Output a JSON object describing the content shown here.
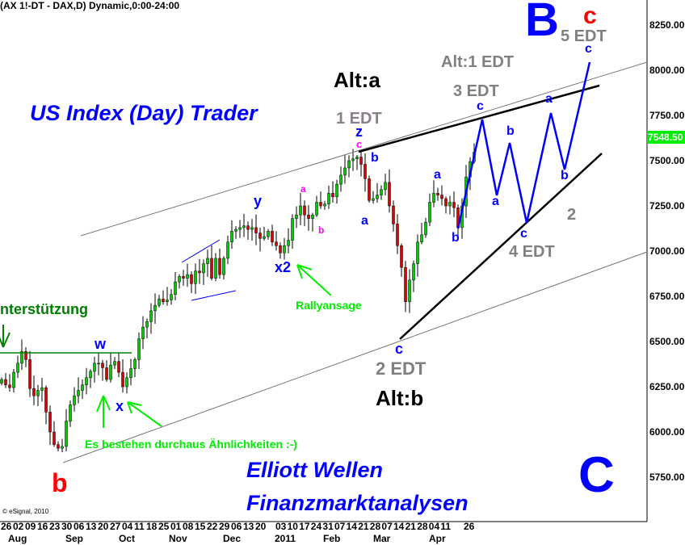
{
  "header": {
    "title": "(AX 1!-DT - DAX,D) Dynamic,0:00-24:00",
    "copyright": "© eSignal, 2010"
  },
  "chart_data": {
    "type": "candlestick",
    "symbol": "DAX",
    "interval": "D",
    "ylim": [
      5600,
      8400
    ],
    "y_ticks": [
      "8250.00",
      "8000.00",
      "7750.00",
      "7500.00",
      "7250.00",
      "7000.00",
      "6750.00",
      "6500.00",
      "6250.00",
      "6000.00",
      "5750.00"
    ],
    "last_price": "7548.50",
    "x_day_ticks": [
      "26",
      "02",
      "09",
      "16",
      "23",
      "30",
      "06",
      "13",
      "20",
      "27",
      "04",
      "11",
      "18",
      "25",
      "01",
      "08",
      "15",
      "22",
      "29",
      "06",
      "13",
      "20",
      "03",
      "10",
      "17",
      "24",
      "31",
      "07",
      "14",
      "21",
      "28",
      "07",
      "14",
      "21",
      "28",
      "04",
      "11",
      "26"
    ],
    "x_month_ticks": [
      "Aug",
      "Sep",
      "Oct",
      "Nov",
      "Dec",
      "2011",
      "Feb",
      "Mar",
      "Apr"
    ],
    "closes": [
      6290,
      6260,
      6245,
      6330,
      6380,
      6445,
      6400,
      6240,
      6200,
      6230,
      6245,
      6110,
      6000,
      5930,
      5910,
      5920,
      6060,
      6150,
      6200,
      6230,
      6260,
      6300,
      6335,
      6380,
      6380,
      6355,
      6290,
      6370,
      6390,
      6330,
      6250,
      6300,
      6350,
      6400,
      6515,
      6580,
      6610,
      6670,
      6700,
      6735,
      6720,
      6730,
      6760,
      6830,
      6860,
      6850,
      6870,
      6820,
      6890,
      6880,
      6930,
      6960,
      6850,
      6960,
      6870,
      6960,
      7050,
      7110,
      7120,
      7130,
      7140,
      7120,
      7130,
      7100,
      7070,
      7080,
      7110,
      7050,
      7030,
      6990,
      7030,
      7060,
      7180,
      7200,
      7250,
      7200,
      7180,
      7200,
      7270,
      7250,
      7260,
      7320,
      7300,
      7370,
      7420,
      7460,
      7500,
      7510,
      7520,
      7480,
      7400,
      7280,
      7290,
      7310,
      7340,
      7380,
      7250,
      7150,
      7030,
      6910,
      6720,
      6840,
      6930,
      7050,
      7090,
      7160,
      7270,
      7320,
      7310,
      7290,
      7250,
      7270,
      7240,
      7130,
      7250,
      7410,
      7495,
      7548
    ],
    "colors": {
      "up": "#00cc00",
      "down": "#dd0000",
      "last_price_bg": "#00ee00"
    },
    "grid": false
  },
  "annotations": {
    "us_index": "US Index (Day) Trader",
    "alt_a": "Alt:a",
    "edt1": "1 EDT",
    "z": "z",
    "c_mag": "c",
    "alt_1edt": "Alt:1 EDT",
    "edt3": "3 EDT",
    "B": "B",
    "c_red": "c",
    "edt5": "5 EDT",
    "c_top": "c",
    "c3": "c",
    "b_f1": "b",
    "a_f1": "a",
    "c_f1": "c",
    "a_f2": "a",
    "b_f2": "b",
    "two": "2",
    "edt4": "4 EDT",
    "a_apr": "a",
    "b_apr": "b",
    "b_feb": "b",
    "a_feb": "a",
    "y": "y",
    "a_mag": "a",
    "b_mag": "b",
    "x2": "x2",
    "rally": "Rallyansage",
    "c_mar": "c",
    "edt2": "2 EDT",
    "alt_b": "Alt:b",
    "support": "nterstützung",
    "w": "w",
    "x": "x",
    "similar": "Es bestehen durchaus Ähnlichkeiten :-)",
    "b_red": "b",
    "elliott": "Elliott Wellen",
    "finanz": "Finanzmarktanalysen",
    "C": "C"
  }
}
